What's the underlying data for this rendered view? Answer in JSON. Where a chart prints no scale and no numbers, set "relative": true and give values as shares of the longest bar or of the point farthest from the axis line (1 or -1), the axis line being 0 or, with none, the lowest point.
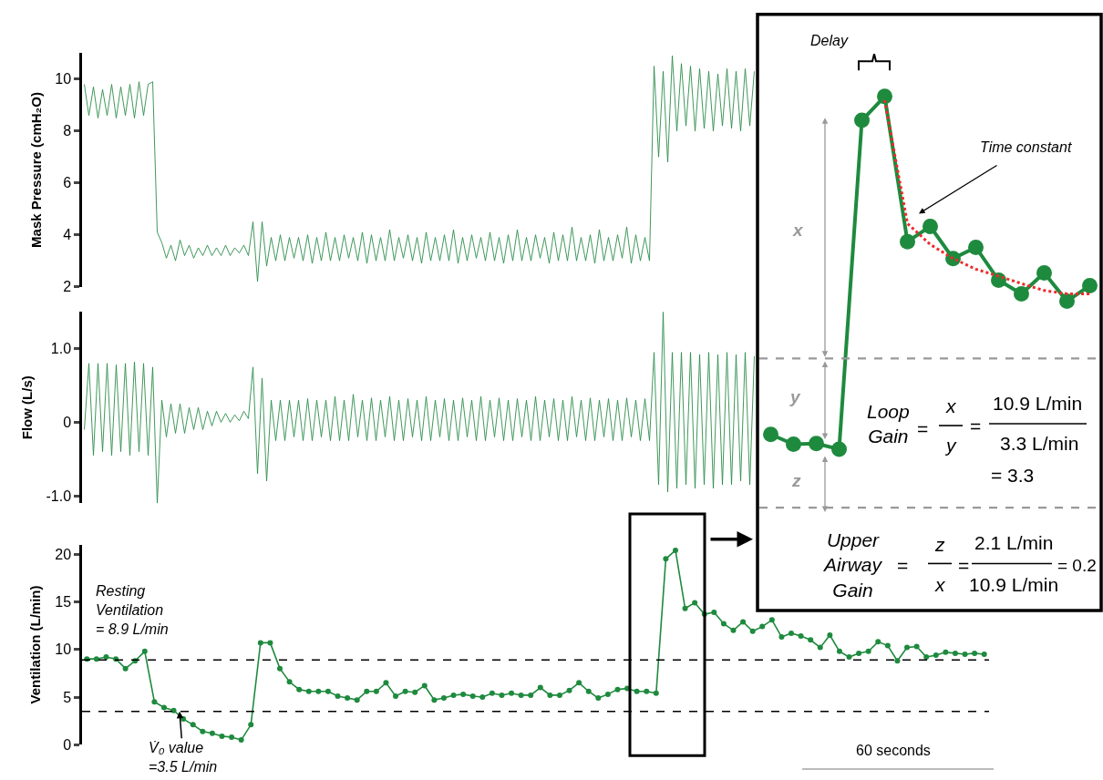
{
  "chart_data": [
    {
      "type": "line",
      "ylabel": "Mask Pressure (cmH₂O)",
      "ylim": [
        2,
        11
      ],
      "yticks": [
        2,
        4,
        6,
        8,
        10
      ],
      "tick_labels": "y",
      "marker": "none",
      "categories": [
        null,
        null,
        null,
        null,
        null,
        null,
        null,
        null,
        null,
        null,
        null,
        null,
        null,
        null,
        null,
        null,
        null,
        null,
        null,
        null,
        null,
        null,
        null,
        null,
        null,
        null,
        null,
        null,
        null,
        null,
        null,
        null,
        null,
        null,
        null,
        null,
        null,
        null,
        null,
        null,
        null,
        null,
        null,
        null,
        null,
        null,
        null,
        null,
        null,
        null,
        null,
        null,
        null,
        null,
        null,
        null,
        null,
        null,
        null,
        null,
        null,
        null,
        null,
        null,
        null,
        null,
        null,
        null,
        null,
        null,
        null,
        null,
        null,
        null,
        null,
        null,
        null,
        null,
        null,
        null,
        null,
        null,
        null,
        null,
        null,
        null,
        null,
        null,
        null,
        null,
        null,
        null,
        null,
        null,
        null,
        null,
        null,
        null,
        null,
        null,
        null,
        null,
        null,
        null,
        null,
        null,
        null,
        null,
        null,
        null,
        null,
        null,
        null,
        null,
        null,
        null,
        null,
        null,
        null,
        null,
        null,
        null,
        null,
        null,
        null,
        null,
        null,
        null,
        null,
        null,
        null,
        null,
        null,
        null,
        null,
        null,
        null,
        null,
        null,
        null,
        null,
        null,
        null,
        null,
        null,
        null,
        null,
        null
      ],
      "series": [
        {
          "color": "#2a8c48",
          "values": [
            9.8,
            8.6,
            9.7,
            8.5,
            9.6,
            8.6,
            9.8,
            8.5,
            9.7,
            8.6,
            9.8,
            8.5,
            9.9,
            8.6,
            9.8,
            9.9,
            4.1,
            3.7,
            3.1,
            3.6,
            3.0,
            3.8,
            3.2,
            3.6,
            3.1,
            3.5,
            3.2,
            3.6,
            3.2,
            3.5,
            3.2,
            3.6,
            3.2,
            3.5,
            3.3,
            3.6,
            3.2,
            4.5,
            2.2,
            4.5,
            2.8,
            3.9,
            3.0,
            4.0,
            3.0,
            3.9,
            3.1,
            3.9,
            3.0,
            4.0,
            2.9,
            3.9,
            3.0,
            4.1,
            3.0,
            3.9,
            3.0,
            4.0,
            3.1,
            3.9,
            3.0,
            4.1,
            2.9,
            4.0,
            3.0,
            3.9,
            3.0,
            4.2,
            3.0,
            3.9,
            3.1,
            4.0,
            3.0,
            3.9,
            2.9,
            4.1,
            3.0,
            3.9,
            3.0,
            4.0,
            3.0,
            4.2,
            2.9,
            3.9,
            3.0,
            4.0,
            3.1,
            3.9,
            3.0,
            4.1,
            3.0,
            3.9,
            2.9,
            4.0,
            3.0,
            4.2,
            3.0,
            3.9,
            3.0,
            4.0,
            3.1,
            3.9,
            2.9,
            4.1,
            3.0,
            4.0,
            3.0,
            4.3,
            3.0,
            3.9,
            3.0,
            4.0,
            2.9,
            4.2,
            3.0,
            3.9,
            3.0,
            4.0,
            3.1,
            4.3,
            2.9,
            4.0,
            3.0,
            3.9,
            3.0,
            10.5,
            7.0,
            10.3,
            6.8,
            10.9,
            8.0,
            10.6,
            8.2,
            10.5,
            8.0,
            10.4,
            8.1,
            10.3,
            8.0,
            10.2,
            8.2,
            10.4,
            8.1,
            10.3,
            8.0,
            10.4,
            8.2,
            10.3
          ]
        }
      ]
    },
    {
      "type": "line",
      "ylabel": "Flow (L/s)",
      "ylim": [
        -1.1,
        1.5
      ],
      "yticks": [
        {
          "value": -1.0,
          "label": "-1.0"
        },
        0,
        {
          "value": 1.0,
          "label": "1.0"
        }
      ],
      "tick_labels": "y",
      "marker": "none",
      "categories": [
        null,
        null,
        null,
        null,
        null,
        null,
        null,
        null,
        null,
        null,
        null,
        null,
        null,
        null,
        null,
        null,
        null,
        null,
        null,
        null,
        null,
        null,
        null,
        null,
        null,
        null,
        null,
        null,
        null,
        null,
        null,
        null,
        null,
        null,
        null,
        null,
        null,
        null,
        null,
        null,
        null,
        null,
        null,
        null,
        null,
        null,
        null,
        null,
        null,
        null,
        null,
        null,
        null,
        null,
        null,
        null,
        null,
        null,
        null,
        null,
        null,
        null,
        null,
        null,
        null,
        null,
        null,
        null,
        null,
        null,
        null,
        null,
        null,
        null,
        null,
        null,
        null,
        null,
        null,
        null,
        null,
        null,
        null,
        null,
        null,
        null,
        null,
        null,
        null,
        null,
        null,
        null,
        null,
        null,
        null,
        null,
        null,
        null,
        null,
        null,
        null,
        null,
        null,
        null,
        null,
        null,
        null,
        null,
        null,
        null,
        null,
        null,
        null,
        null,
        null,
        null,
        null,
        null,
        null,
        null,
        null,
        null,
        null,
        null,
        null,
        null,
        null,
        null,
        null,
        null,
        null,
        null,
        null,
        null,
        null,
        null,
        null,
        null,
        null,
        null,
        null,
        null,
        null,
        null,
        null,
        null,
        null,
        null
      ],
      "series": [
        {
          "color": "#2a8c48",
          "values": [
            -0.1,
            0.8,
            -0.45,
            0.8,
            -0.4,
            0.8,
            -0.45,
            0.78,
            -0.4,
            0.8,
            -0.45,
            0.82,
            -0.4,
            0.8,
            -0.45,
            0.75,
            -1.1,
            0.3,
            -0.2,
            0.25,
            -0.15,
            0.25,
            -0.15,
            0.2,
            -0.1,
            0.2,
            -0.1,
            0.15,
            -0.05,
            0.15,
            0.0,
            0.12,
            0.0,
            0.1,
            0.02,
            0.15,
            0.05,
            0.75,
            -0.7,
            0.6,
            -0.8,
            0.3,
            -0.25,
            0.3,
            -0.25,
            0.3,
            -0.2,
            0.3,
            -0.25,
            0.32,
            -0.25,
            0.3,
            -0.2,
            0.3,
            -0.25,
            0.35,
            -0.25,
            0.3,
            -0.25,
            0.38,
            -0.2,
            0.3,
            -0.25,
            0.33,
            -0.25,
            0.3,
            -0.2,
            0.35,
            -0.25,
            0.3,
            -0.25,
            0.32,
            -0.2,
            0.3,
            -0.25,
            0.35,
            -0.25,
            0.3,
            -0.2,
            0.32,
            -0.25,
            0.3,
            -0.25,
            0.33,
            -0.2,
            0.3,
            -0.25,
            0.35,
            -0.25,
            0.3,
            -0.2,
            0.33,
            -0.25,
            0.3,
            -0.25,
            0.32,
            -0.2,
            0.3,
            -0.25,
            0.35,
            -0.25,
            0.3,
            -0.2,
            0.32,
            -0.25,
            0.3,
            -0.25,
            0.35,
            -0.2,
            0.3,
            -0.25,
            0.33,
            -0.25,
            0.3,
            -0.2,
            0.32,
            -0.25,
            0.3,
            -0.25,
            0.33,
            -0.2,
            0.3,
            -0.25,
            0.32,
            -0.25,
            0.95,
            -0.85,
            1.5,
            -0.95,
            0.95,
            -0.9,
            0.95,
            -0.85,
            0.95,
            -0.9,
            0.92,
            -0.85,
            0.95,
            -0.9,
            0.92,
            -0.85,
            0.95,
            -0.85,
            0.92,
            -0.8,
            0.95,
            -0.85,
            0.9
          ]
        }
      ]
    },
    {
      "type": "line",
      "ylabel": "Ventilation (L/min)",
      "ylim": [
        0,
        21
      ],
      "yticks": [
        0,
        5,
        10,
        15,
        20
      ],
      "tick_labels": "y",
      "marker": "circle",
      "categories": [
        null,
        null,
        null,
        null,
        null,
        null,
        null,
        null,
        null,
        null,
        null,
        null,
        null,
        null,
        null,
        null,
        null,
        null,
        null,
        null,
        null,
        null,
        null,
        null,
        null,
        null,
        null,
        null,
        null,
        null,
        null,
        null,
        null,
        null,
        null,
        null,
        null,
        null,
        null,
        null,
        null,
        null,
        null,
        null,
        null,
        null,
        null,
        null,
        null,
        null,
        null,
        null,
        null,
        null,
        null,
        null,
        null,
        null,
        null,
        null,
        null,
        null,
        null,
        null,
        null,
        null,
        null,
        null,
        null,
        null,
        null,
        null,
        null,
        null,
        null,
        null,
        null,
        null,
        null,
        null,
        null,
        null,
        null,
        null,
        null,
        null,
        null,
        null,
        null,
        null,
        null,
        null,
        null,
        null
      ],
      "series": [
        {
          "color": "#1e8a3e",
          "values": [
            9.0,
            9.0,
            9.2,
            9.0,
            8.0,
            8.8,
            9.8,
            4.5,
            3.9,
            3.6,
            2.7,
            2.1,
            1.4,
            1.2,
            0.9,
            0.8,
            0.5,
            2.1,
            10.7,
            10.7,
            8.0,
            6.6,
            5.8,
            5.6,
            5.6,
            5.6,
            5.1,
            4.9,
            4.7,
            5.6,
            5.6,
            6.5,
            5.1,
            5.6,
            5.5,
            6.2,
            4.7,
            4.9,
            5.2,
            5.3,
            5.1,
            5.0,
            5.4,
            5.2,
            5.4,
            5.2,
            5.2,
            6.0,
            5.2,
            5.2,
            5.7,
            6.5,
            5.6,
            4.9,
            5.3,
            5.8,
            5.9,
            5.6,
            5.6,
            5.4,
            19.5,
            20.4,
            14.3,
            14.9,
            13.7,
            13.9,
            12.7,
            12.0,
            12.9,
            11.9,
            12.4,
            13.1,
            11.3,
            11.7,
            11.4,
            11.0,
            10.2,
            11.5,
            9.8,
            9.2,
            9.6,
            9.8,
            10.8,
            10.4,
            8.8,
            10.2,
            10.3,
            9.2,
            9.4,
            9.7,
            9.6,
            9.5,
            9.6,
            9.5
          ]
        }
      ],
      "ref_lines": [
        {
          "axis": "y",
          "value": 8.9,
          "label": "Resting\nVentilation\n= 8.9 L/min",
          "color": "#000000",
          "line_style": "dashed"
        },
        {
          "axis": "y",
          "value": 3.5,
          "label": "V̇₀ value\n=3.5 L/min",
          "color": "#000000",
          "line_style": "dashed"
        }
      ],
      "annotations": [
        "60 seconds"
      ]
    },
    {
      "type": "line",
      "relative": true,
      "tick_labels": false,
      "marker": "circle",
      "categories": [
        null,
        null,
        null,
        null,
        null,
        null,
        null,
        null,
        null,
        null,
        null,
        null,
        null,
        null,
        null
      ],
      "series": [
        {
          "color": "#1e8a3e",
          "values": [
            0.178,
            0.154,
            0.156,
            0.142,
            0.942,
            1,
            0.647,
            0.684,
            0.606,
            0.633,
            0.553,
            0.52,
            0.571,
            0.502,
            0.54
          ]
        },
        {
          "type": "line",
          "color": "#ee2a2a",
          "line_style": "dotted",
          "marker": "none",
          "values": [
            null,
            null,
            null,
            null,
            null,
            0.991,
            0.691,
            0.64,
            0.606,
            0.58,
            0.563,
            0.545,
            0.528,
            0.52,
            0.52
          ]
        }
      ],
      "ref_lines": [
        {
          "axis": "y",
          "value": 0.363,
          "color": "#999999",
          "line_style": "dashed"
        },
        {
          "axis": "y",
          "value": 0,
          "color": "#999999",
          "line_style": "dashed"
        }
      ],
      "annotations": [
        "Delay",
        "Time constant",
        "x",
        "y",
        "z",
        "Loop\nGain",
        "=",
        "x",
        "y",
        "=",
        "10.9 L/min",
        "3.3 L/min",
        "= 3.3",
        "Upper\nAirway\nGain",
        "=",
        "z",
        "x",
        "=",
        "2.1 L/min",
        "10.9 L/min",
        "= 0.2"
      ]
    }
  ]
}
